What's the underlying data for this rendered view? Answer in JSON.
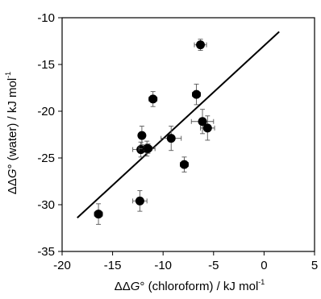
{
  "chart_data": {
    "type": "scatter",
    "xlabel": {
      "pre": "ΔΔ",
      "italic": "G",
      "post": "° (chloroform) / kJ mol",
      "sup": "-1"
    },
    "ylabel": {
      "pre": "ΔΔ",
      "italic": "G",
      "post": "° (water) / kJ mol",
      "sup": "-1"
    },
    "xlim": [
      -20,
      5
    ],
    "ylim": [
      -35,
      -10
    ],
    "xticks": [
      -20,
      -15,
      -10,
      -5,
      0,
      5
    ],
    "yticks": [
      -35,
      -30,
      -25,
      -20,
      -15,
      -10
    ],
    "xtick_labels": [
      "-20",
      "-15",
      "-10",
      "-5",
      "0",
      "5"
    ],
    "ytick_labels": [
      "-35",
      "-30",
      "-25",
      "-20",
      "-15",
      "-10"
    ],
    "grid": false,
    "legend": "none",
    "marker_color": "#000000",
    "points": [
      {
        "x": -16.4,
        "y": -31.0,
        "xerr": 0.4,
        "yerr": 1.1
      },
      {
        "x": -12.3,
        "y": -29.6,
        "xerr": 0.7,
        "yerr": 1.1
      },
      {
        "x": -12.1,
        "y": -22.6,
        "xerr": 0.3,
        "yerr": 1.0
      },
      {
        "x": -12.2,
        "y": -24.1,
        "xerr": 0.8,
        "yerr": 0.8
      },
      {
        "x": -11.6,
        "y": -24.0,
        "xerr": 0.8,
        "yerr": 0.8
      },
      {
        "x": -11.5,
        "y": -24.0,
        "xerr": 0.4,
        "yerr": 0.5
      },
      {
        "x": -11.0,
        "y": -18.7,
        "xerr": 0.4,
        "yerr": 0.8
      },
      {
        "x": -9.2,
        "y": -22.9,
        "xerr": 1.0,
        "yerr": 1.3
      },
      {
        "x": -7.9,
        "y": -25.7,
        "xerr": 0.4,
        "yerr": 0.8
      },
      {
        "x": -6.7,
        "y": -18.2,
        "xerr": 0.4,
        "yerr": 1.1
      },
      {
        "x": -6.3,
        "y": -12.9,
        "xerr": 0.6,
        "yerr": 0.6
      },
      {
        "x": -6.1,
        "y": -21.1,
        "xerr": 1.1,
        "yerr": 1.3
      },
      {
        "x": -5.6,
        "y": -21.8,
        "xerr": 0.7,
        "yerr": 1.3
      }
    ],
    "fit_line": {
      "x": [
        -18.5,
        1.5
      ],
      "y": [
        -31.4,
        -11.5
      ]
    }
  }
}
